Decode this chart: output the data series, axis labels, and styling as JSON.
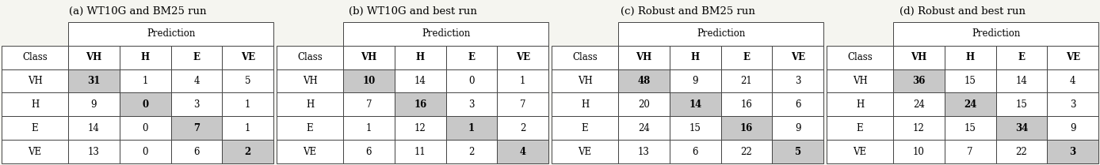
{
  "tables": [
    {
      "title": "(a) WT10G and BM25 run",
      "data": [
        [
          31,
          1,
          4,
          5
        ],
        [
          9,
          0,
          3,
          1
        ],
        [
          14,
          0,
          7,
          1
        ],
        [
          13,
          0,
          6,
          2
        ]
      ]
    },
    {
      "title": "(b) WT10G and best run",
      "data": [
        [
          10,
          14,
          0,
          1
        ],
        [
          7,
          16,
          3,
          7
        ],
        [
          1,
          12,
          1,
          2
        ],
        [
          6,
          11,
          2,
          4
        ]
      ]
    },
    {
      "title": "(c) Robust and BM25 run",
      "data": [
        [
          48,
          9,
          21,
          3
        ],
        [
          20,
          14,
          16,
          6
        ],
        [
          24,
          15,
          16,
          9
        ],
        [
          13,
          6,
          22,
          5
        ]
      ]
    },
    {
      "title": "(d) Robust and best run",
      "data": [
        [
          36,
          15,
          14,
          4
        ],
        [
          24,
          24,
          15,
          3
        ],
        [
          12,
          15,
          34,
          9
        ],
        [
          10,
          7,
          22,
          3
        ]
      ]
    }
  ],
  "row_labels": [
    "VH",
    "H",
    "E",
    "VE"
  ],
  "col_labels": [
    "VH",
    "H",
    "E",
    "VE"
  ],
  "header_label": "Class",
  "prediction_label": "Prediction",
  "diag_color": "#c8c8c8",
  "bg_color": "#f5f5f0",
  "cell_bg": "#ffffff",
  "line_color": "#444444",
  "text_color": "#000000",
  "fontsize": 8.5,
  "title_fontsize": 9.5
}
